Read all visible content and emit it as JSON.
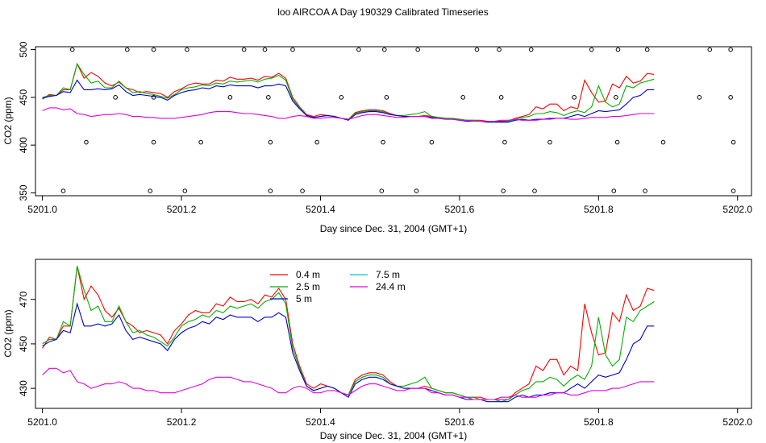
{
  "figure_title": "loo AIRCOA A  Day 190329  Calibrated Timeseries",
  "chart_data": [
    {
      "type": "scatter+line",
      "xlabel": "Day since Dec. 31, 2004 (GMT+1)",
      "ylabel": "CO2 (ppm)",
      "xlim": [
        5200.99,
        5202.02
      ],
      "ylim": [
        347,
        503
      ],
      "xticks": [
        5201.0,
        5201.2,
        5201.4,
        5201.6,
        5201.8,
        5202.0
      ],
      "xtick_labels": [
        "5201.0",
        "5201.2",
        "5201.4",
        "5201.6",
        "5201.8",
        "5202.0"
      ],
      "yticks": [
        350,
        400,
        450,
        500
      ],
      "ytick_labels": [
        "350",
        "400",
        "450",
        "500"
      ],
      "grid": false,
      "calibration_points": {
        "marker": "open-circle",
        "x": [
          5201.043,
          5201.122,
          5201.16,
          5201.208,
          5201.29,
          5201.32,
          5201.36,
          5201.455,
          5201.492,
          5201.54,
          5201.625,
          5201.657,
          5201.703,
          5201.79,
          5201.828,
          5201.87,
          5201.96,
          5201.99,
          5201.105,
          5201.16,
          5201.27,
          5201.325,
          5201.43,
          5201.495,
          5201.605,
          5201.66,
          5201.765,
          5201.825,
          5201.945,
          5201.99,
          5201.063,
          5201.16,
          5201.228,
          5201.328,
          5201.395,
          5201.49,
          5201.56,
          5201.665,
          5201.73,
          5201.827,
          5201.893,
          5201.994,
          5201.03,
          5201.155,
          5201.205,
          5201.328,
          5201.374,
          5201.488,
          5201.538,
          5201.663,
          5201.708,
          5201.822,
          5201.867,
          5201.994
        ],
        "y": [
          500,
          500,
          500,
          500,
          500,
          500,
          500,
          500,
          500,
          500,
          500,
          500,
          500,
          500,
          500,
          500,
          500,
          500,
          450,
          450,
          450,
          450,
          450,
          450,
          450,
          450,
          450,
          450,
          450,
          450,
          403,
          403,
          403,
          403,
          403,
          403,
          403,
          403,
          403,
          403,
          403,
          403,
          352,
          352,
          352,
          352,
          352,
          352,
          352,
          352,
          352,
          352,
          352,
          352
        ]
      },
      "series": [
        {
          "name": "0.4 m",
          "color": "#ff0000",
          "x_start": 5201.0,
          "x_step": 0.01,
          "values": [
            448,
            453,
            452,
            458,
            458,
            485,
            470,
            476,
            472,
            465,
            462,
            466,
            460,
            458,
            455,
            456,
            455,
            454,
            450,
            456,
            459,
            463,
            465,
            464,
            464,
            468,
            467,
            471,
            469,
            469,
            470,
            468,
            472,
            471,
            475,
            470,
            450,
            440,
            432,
            430,
            432,
            431,
            430,
            428,
            427,
            434,
            436,
            437,
            437,
            436,
            433,
            431,
            430,
            430,
            430,
            431,
            430,
            429,
            428,
            428,
            427,
            426,
            426,
            426,
            425,
            425,
            425,
            425,
            428,
            430,
            432,
            440,
            438,
            443,
            443,
            436,
            440,
            438,
            468,
            455,
            445,
            446,
            464,
            460,
            472,
            465,
            467,
            475,
            474
          ]
        },
        {
          "name": "2.5 m",
          "color": "#00b000",
          "x_start": 5201.0,
          "x_step": 0.01,
          "values": [
            450,
            452,
            452,
            460,
            458,
            485,
            474,
            465,
            467,
            460,
            460,
            467,
            460,
            455,
            456,
            454,
            453,
            451,
            449,
            453,
            458,
            460,
            461,
            463,
            462,
            465,
            464,
            467,
            466,
            467,
            468,
            466,
            469,
            470,
            473,
            468,
            448,
            439,
            431,
            429,
            430,
            431,
            430,
            428,
            427,
            433,
            435,
            436,
            436,
            435,
            432,
            431,
            431,
            432,
            433,
            435,
            430,
            429,
            428,
            428,
            427,
            426,
            426,
            425,
            425,
            425,
            424,
            425,
            427,
            429,
            430,
            433,
            433,
            435,
            434,
            431,
            434,
            436,
            434,
            440,
            462,
            445,
            440,
            443,
            462,
            460,
            465,
            467,
            469
          ]
        },
        {
          "name": "5 m",
          "color": "#0000cc",
          "x_start": 5201.0,
          "x_step": 0.01,
          "values": [
            449,
            451,
            452,
            456,
            455,
            468,
            458,
            458,
            459,
            458,
            459,
            463,
            456,
            452,
            453,
            452,
            451,
            450,
            447,
            452,
            455,
            457,
            458,
            460,
            459,
            462,
            461,
            463,
            462,
            462,
            462,
            460,
            462,
            462,
            464,
            462,
            446,
            438,
            431,
            429,
            430,
            431,
            430,
            428,
            426,
            432,
            434,
            435,
            435,
            434,
            432,
            431,
            430,
            430,
            430,
            430,
            429,
            428,
            427,
            427,
            426,
            425,
            425,
            425,
            424,
            424,
            424,
            424,
            426,
            427,
            426,
            427,
            427,
            428,
            428,
            428,
            430,
            432,
            430,
            433,
            436,
            435,
            436,
            437,
            443,
            450,
            452,
            458,
            458
          ]
        },
        {
          "name": "7.5 m",
          "color": "#00c8c8",
          "x_start": 5201.0,
          "x_step": 0.01,
          "values": []
        },
        {
          "name": "24.4 m",
          "color": "#e000e0",
          "x_start": 5201.0,
          "x_step": 0.01,
          "values": [
            436,
            439,
            439,
            437,
            438,
            433,
            432,
            430,
            431,
            432,
            432,
            433,
            432,
            430,
            430,
            429,
            429,
            428,
            428,
            428,
            429,
            430,
            431,
            432,
            434,
            435,
            435,
            435,
            434,
            433,
            433,
            432,
            431,
            430,
            428,
            428,
            430,
            431,
            430,
            428,
            428,
            429,
            429,
            428,
            427,
            429,
            431,
            432,
            432,
            431,
            430,
            429,
            429,
            430,
            430,
            430,
            428,
            428,
            427,
            427,
            426,
            426,
            425,
            425,
            425,
            425,
            426,
            426,
            427,
            426,
            426,
            426,
            427,
            427,
            428,
            428,
            427,
            427,
            428,
            429,
            429,
            429,
            430,
            430,
            431,
            432,
            433,
            433,
            433
          ]
        }
      ]
    },
    {
      "type": "line",
      "xlabel": "Day since Dec. 31, 2004 (GMT+1)",
      "ylabel": "CO2 (ppm)",
      "xlim": [
        5200.99,
        5202.02
      ],
      "ylim": [
        421,
        488
      ],
      "xticks": [
        5201.0,
        5201.2,
        5201.4,
        5201.6,
        5201.8,
        5202.0
      ],
      "xtick_labels": [
        "5201.0",
        "5201.2",
        "5201.4",
        "5201.6",
        "5201.8",
        "5202.0"
      ],
      "yticks": [
        430,
        450,
        470
      ],
      "ytick_labels": [
        "430",
        "450",
        "470"
      ],
      "grid": false,
      "legend": {
        "position": "top-center",
        "entries": [
          "0.4 m",
          "2.5 m",
          "5 m",
          "7.5 m",
          "24.4 m"
        ]
      },
      "series_ref": "same series as chart 1 (0.4 m, 2.5 m, 5 m, 7.5 m, 24.4 m)"
    }
  ]
}
